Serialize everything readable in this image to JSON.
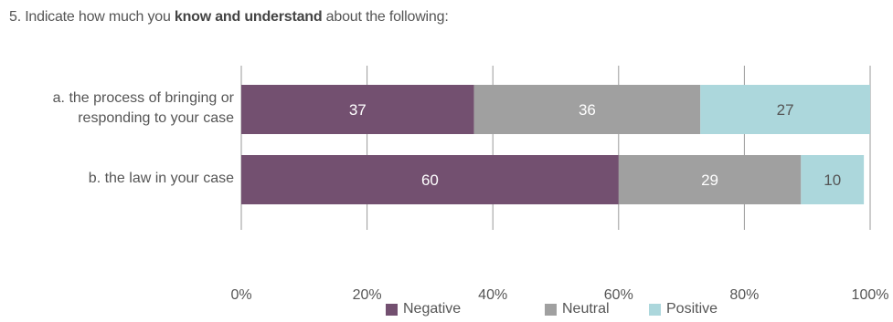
{
  "question": {
    "prefix": "5. Indicate how much you ",
    "bold": "know and understand",
    "suffix": " about the following:"
  },
  "chart_data": {
    "type": "bar",
    "orientation": "horizontal",
    "stacked": true,
    "categories": [
      "a. the process of bringing or\nresponding to your case",
      "b. the law in your case"
    ],
    "series": [
      {
        "name": "Negative",
        "values": [
          37,
          60
        ],
        "color": "#735070"
      },
      {
        "name": "Neutral",
        "values": [
          36,
          29
        ],
        "color": "#a0a0a0"
      },
      {
        "name": "Positive",
        "values": [
          27,
          10
        ],
        "color": "#acd7dc"
      }
    ],
    "xlim": [
      0,
      100
    ],
    "x_ticks": [
      "0%",
      "20%",
      "40%",
      "60%",
      "80%",
      "100%"
    ],
    "grid": true,
    "legend_position": "bottom"
  }
}
